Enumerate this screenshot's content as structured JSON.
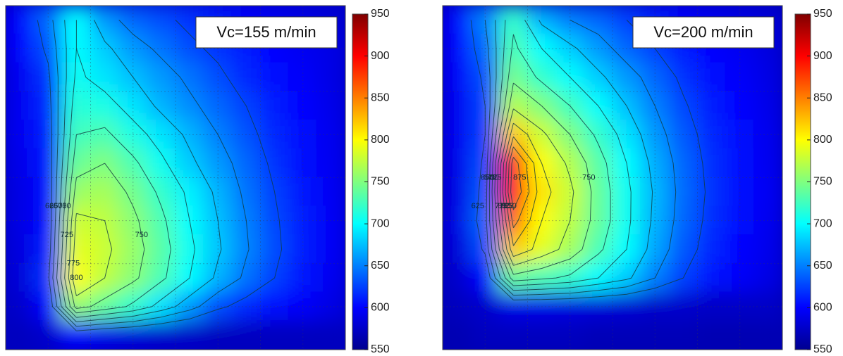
{
  "chart_data": [
    {
      "type": "heatmap",
      "annotation": "Vc=155 m/min",
      "z": [
        [
          600,
          640,
          700,
          660,
          640,
          630,
          620,
          610,
          600,
          595,
          590,
          585
        ],
        [
          600,
          630,
          700,
          680,
          660,
          645,
          630,
          620,
          610,
          600,
          595,
          590
        ],
        [
          595,
          620,
          705,
          690,
          675,
          660,
          645,
          630,
          615,
          605,
          598,
          590
        ],
        [
          595,
          615,
          715,
          710,
          690,
          670,
          655,
          640,
          625,
          610,
          600,
          592
        ],
        [
          595,
          610,
          725,
          730,
          710,
          690,
          670,
          650,
          632,
          615,
          603,
          594
        ],
        [
          592,
          608,
          740,
          750,
          730,
          705,
          680,
          660,
          640,
          620,
          605,
          595
        ],
        [
          590,
          605,
          760,
          765,
          745,
          720,
          695,
          670,
          645,
          625,
          608,
          596
        ],
        [
          590,
          605,
          780,
          775,
          755,
          730,
          700,
          675,
          650,
          628,
          610,
          597
        ],
        [
          588,
          610,
          790,
          780,
          760,
          735,
          705,
          678,
          652,
          630,
          610,
          597
        ],
        [
          585,
          620,
          800,
          775,
          755,
          730,
          700,
          670,
          645,
          625,
          608,
          595
        ],
        [
          580,
          600,
          760,
          740,
          720,
          690,
          660,
          630,
          615,
          605,
          598,
          590
        ],
        [
          575,
          580,
          600,
          590,
          585,
          580,
          578,
          575,
          575,
          575,
          575,
          575
        ]
      ],
      "clim": [
        550,
        950
      ],
      "cticks": [
        550,
        600,
        650,
        700,
        750,
        800,
        850,
        900,
        950
      ],
      "contour_levels": [
        625,
        650,
        675,
        700,
        725,
        750,
        775,
        800
      ]
    },
    {
      "type": "heatmap",
      "annotation": "Vc=200 m/min",
      "z": [
        [
          600,
          650,
          720,
          670,
          650,
          640,
          625,
          612,
          600,
          595,
          590,
          585
        ],
        [
          600,
          640,
          730,
          700,
          680,
          660,
          640,
          625,
          610,
          600,
          595,
          588
        ],
        [
          598,
          630,
          745,
          720,
          700,
          680,
          660,
          640,
          620,
          605,
          598,
          590
        ],
        [
          595,
          625,
          770,
          750,
          725,
          700,
          675,
          650,
          628,
          610,
          600,
          592
        ],
        [
          595,
          625,
          820,
          780,
          750,
          720,
          690,
          660,
          635,
          615,
          603,
          594
        ],
        [
          592,
          630,
          890,
          800,
          770,
          735,
          700,
          668,
          640,
          618,
          605,
          595
        ],
        [
          590,
          635,
          900,
          810,
          780,
          740,
          705,
          672,
          642,
          620,
          606,
          596
        ],
        [
          590,
          640,
          860,
          800,
          775,
          740,
          705,
          670,
          640,
          618,
          605,
          595
        ],
        [
          585,
          630,
          820,
          790,
          765,
          730,
          700,
          665,
          635,
          615,
          602,
          593
        ],
        [
          580,
          600,
          740,
          730,
          720,
          700,
          680,
          650,
          625,
          608,
          598,
          590
        ],
        [
          575,
          580,
          590,
          590,
          588,
          585,
          583,
          580,
          580,
          578,
          578,
          578
        ],
        [
          570,
          575,
          575,
          575,
          575,
          572,
          572,
          572,
          572,
          570,
          570,
          570
        ]
      ],
      "clim": [
        550,
        950
      ],
      "cticks": [
        550,
        600,
        650,
        700,
        750,
        800,
        850,
        900,
        950
      ],
      "contour_levels": [
        625,
        650,
        675,
        700,
        725,
        750,
        775,
        800,
        825,
        850,
        875
      ]
    }
  ]
}
